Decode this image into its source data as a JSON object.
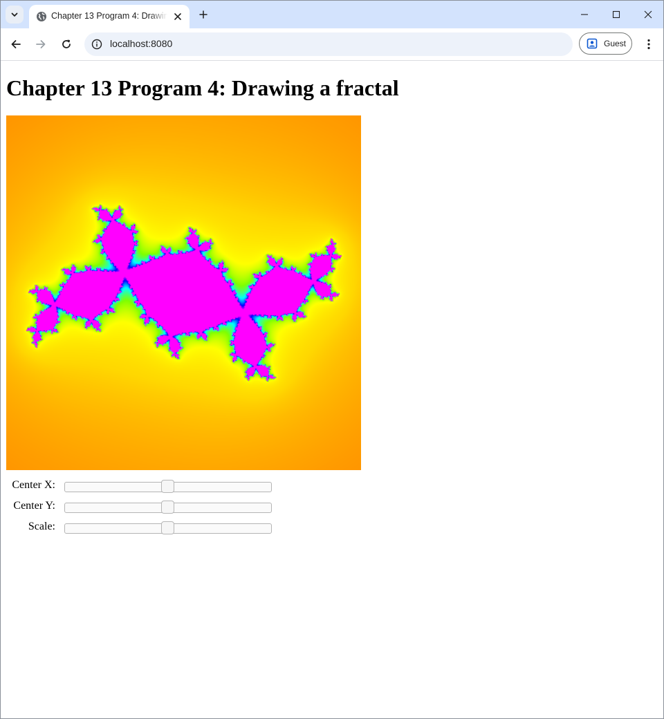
{
  "browser": {
    "tab_title": "Chapter 13 Program 4: Drawing a fractal",
    "url": "localhost:8080",
    "profile_label": "Guest"
  },
  "page": {
    "heading": "Chapter 13 Program 4: Drawing a fractal",
    "controls": [
      {
        "label": "Center X:",
        "value_fraction": 0.5
      },
      {
        "label": "Center Y:",
        "value_fraction": 0.5
      },
      {
        "label": "Scale:",
        "value_fraction": 0.5
      }
    ]
  },
  "colors": {
    "tabbar_bg": "#d3e3fd",
    "omnibox_bg": "#edf2fa",
    "fractal_palette": [
      "#ff4500",
      "#ff8c00",
      "#ffd700",
      "#ffff00",
      "#7fff00",
      "#00ffff",
      "#0000ff",
      "#ff00ff"
    ]
  }
}
